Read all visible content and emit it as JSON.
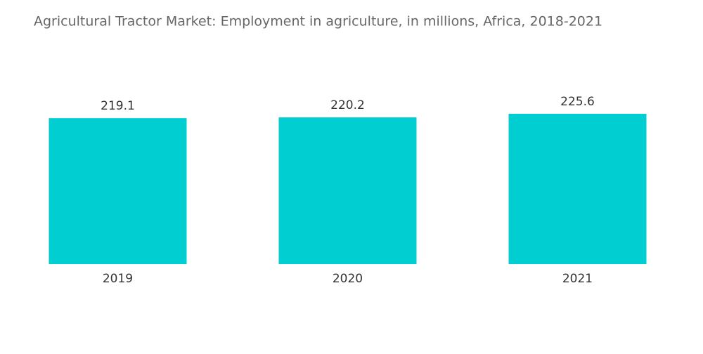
{
  "chart_data": {
    "type": "bar",
    "title": "Agricultural Tractor Market: Employment in agriculture, in millions, Africa, 2018-2021",
    "categories": [
      "2019",
      "2020",
      "2021"
    ],
    "values": [
      219.1,
      220.2,
      225.6
    ],
    "color": "#00ced1"
  }
}
